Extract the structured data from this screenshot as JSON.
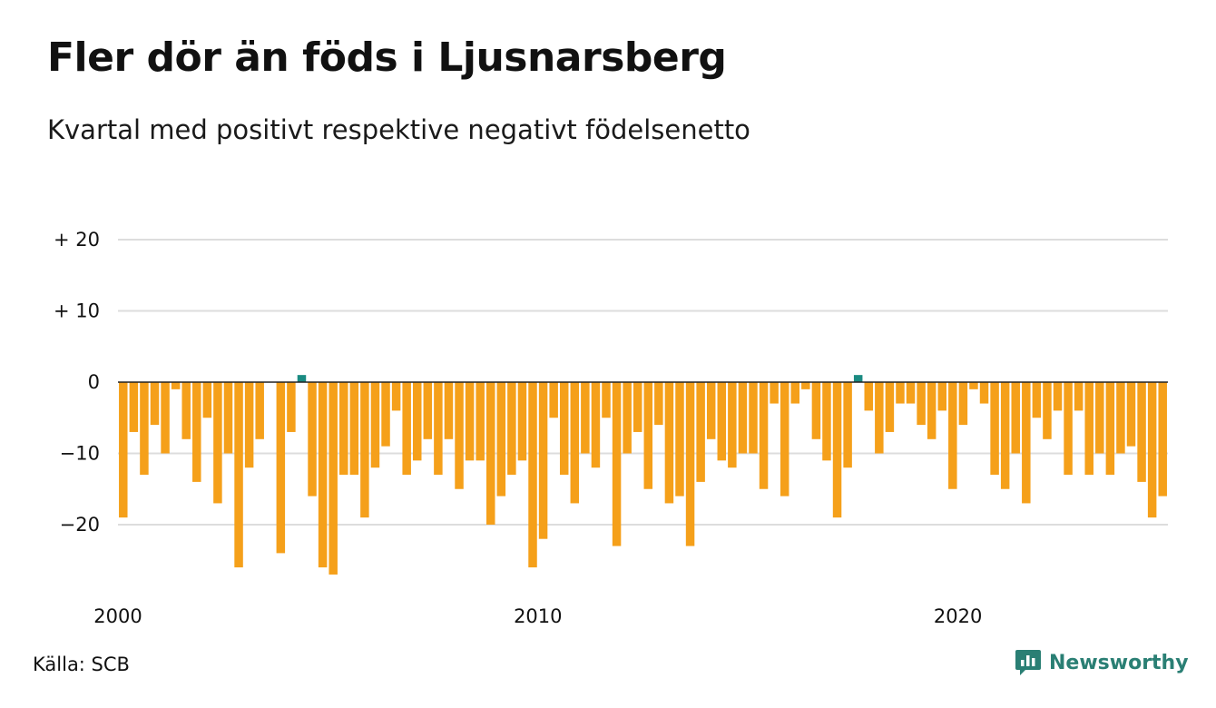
{
  "title": "Fler dör än föds i Ljusnarsberg",
  "subtitle": "Kvartal med positivt respektive negativt födelsenetto",
  "source": "Källa: SCB",
  "brand": "Newsworthy",
  "colors": {
    "negative": "#f5a01a",
    "positive": "#1a8b82",
    "grid": "#dddddd",
    "zero_line": "#222222",
    "brand": "#2a7f74"
  },
  "chart_data": {
    "type": "bar",
    "ylim": [
      -28,
      22
    ],
    "yticks": [
      {
        "value": 20,
        "label": "+ 20"
      },
      {
        "value": 10,
        "label": "+ 10"
      },
      {
        "value": 0,
        "label": "0"
      },
      {
        "value": -10,
        "label": "−10"
      },
      {
        "value": -20,
        "label": "−20"
      }
    ],
    "xticks": [
      {
        "year": 2000,
        "label": "2000"
      },
      {
        "year": 2010,
        "label": "2010"
      },
      {
        "year": 2020,
        "label": "2020"
      }
    ],
    "x_start": "2000 Q1",
    "grid": true,
    "values": [
      -19,
      -7,
      -13,
      -6,
      -10,
      -1,
      -8,
      -14,
      -5,
      -17,
      -10,
      -26,
      -12,
      -8,
      0,
      -24,
      -7,
      1,
      -16,
      -26,
      -27,
      -13,
      -13,
      -19,
      -12,
      -9,
      -4,
      -13,
      -11,
      -8,
      -13,
      -8,
      -15,
      -11,
      -11,
      -20,
      -16,
      -13,
      -11,
      -26,
      -22,
      -5,
      -13,
      -17,
      -10,
      -12,
      -5,
      -23,
      -10,
      -7,
      -15,
      -6,
      -17,
      -16,
      -23,
      -14,
      -8,
      -11,
      -12,
      -10,
      -10,
      -15,
      -3,
      -16,
      -3,
      -1,
      -8,
      -11,
      -19,
      -12,
      1,
      -4,
      -10,
      -7,
      -3,
      -3,
      -6,
      -8,
      -4,
      -15,
      -6,
      -1,
      -3,
      -13,
      -15,
      -10,
      -17,
      -5,
      -8,
      -4,
      -13,
      -4,
      -13,
      -10,
      -13,
      -10,
      -9,
      -14,
      -19,
      -16
    ]
  }
}
